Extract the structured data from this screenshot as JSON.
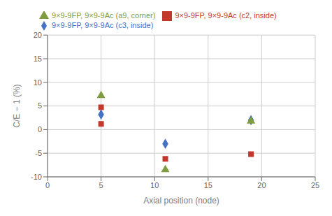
{
  "chart_data": {
    "type": "scatter",
    "xlabel": "Axial position (node)",
    "ylabel": "C/E − 1 (%)",
    "xlim": [
      0,
      25
    ],
    "ylim": [
      -10,
      20
    ],
    "xticks": [
      0,
      5,
      10,
      15,
      20,
      25
    ],
    "yticks": [
      -10,
      -5,
      0,
      5,
      10,
      15,
      20
    ],
    "grid": true,
    "legend": "top",
    "series": [
      {
        "name": "9×9-9FP, 9×9-9Ac (c3, inside)",
        "color": "#4472c4",
        "marker": "diamond",
        "x": [
          5,
          11,
          19
        ],
        "values": [
          3.2,
          -3.0,
          2.0
        ]
      },
      {
        "name": "9×9-9FP, 9×9-9Ac (c2, inside)",
        "color": "#c0392b",
        "marker": "square",
        "x": [
          5,
          5,
          11,
          19
        ],
        "values": [
          4.7,
          1.2,
          -6.2,
          -5.2
        ]
      },
      {
        "name": "9×9-9FP, 9×9-9Ac (a9, corner)",
        "color": "#7f9c3e",
        "marker": "triangle",
        "x": [
          5,
          11,
          19
        ],
        "values": [
          7.2,
          -8.5,
          1.8
        ]
      }
    ]
  }
}
